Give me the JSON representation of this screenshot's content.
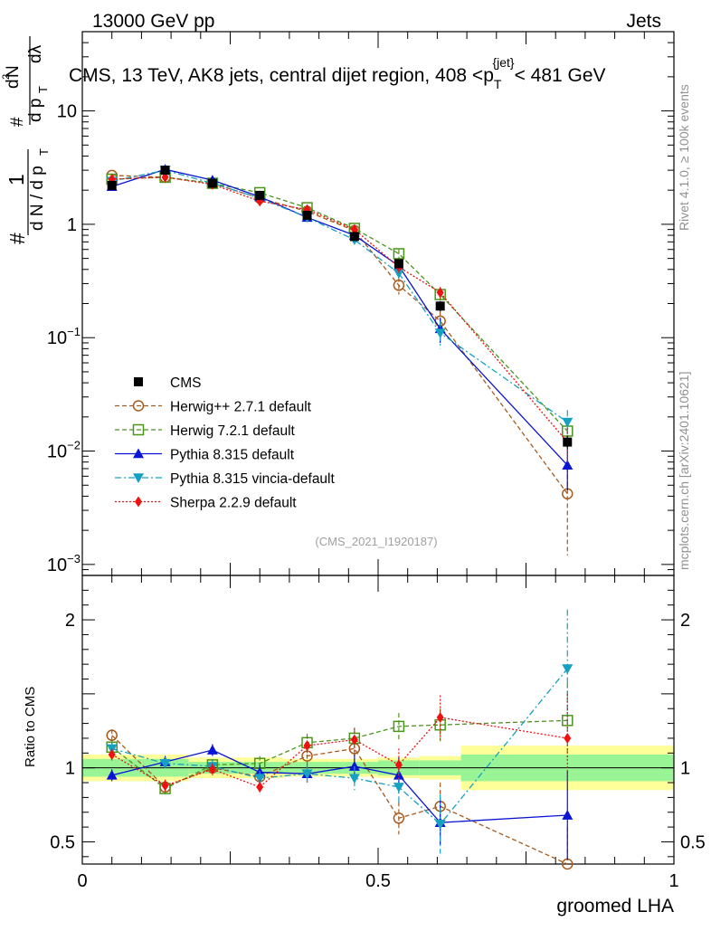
{
  "header": {
    "energy_label": "13000 GeV pp",
    "category_label": "Jets",
    "rivet_label": "Rivet 4.1.0, ≥ 100k events",
    "mcplots_label": "mcplots.cern.ch [arXiv:2401.10621]",
    "analysis_ref": "(CMS_2021_I1920187)"
  },
  "chart_data": {
    "type": "line",
    "title": "CMS, 13 TeV, AK8 jets, central dijet region, 408 < p_T^{jet} < 481 GeV",
    "title_parts": {
      "main": "CMS, 13 TeV, AK8 jets, central dijet region, 408 <p",
      "sub": "T",
      "sup": "{jet}",
      "tail": "< 481 GeV"
    },
    "xlabel": "groomed LHA",
    "ylabel": "1/dN/dp_T  d²N / dp_T dλ",
    "ylabel_ratio": "Ratio to CMS",
    "xlim": [
      0,
      1
    ],
    "ylim_main": [
      0.0008,
      50
    ],
    "ylim_ratio": [
      0.35,
      2.3
    ],
    "yscale_main": "log",
    "main_yticks": [
      {
        "value": 0.001,
        "base": "10",
        "exp": "−3"
      },
      {
        "value": 0.01,
        "base": "10",
        "exp": "−2"
      },
      {
        "value": 0.1,
        "base": "10",
        "exp": "−1"
      },
      {
        "value": 1,
        "base": "1",
        "exp": ""
      },
      {
        "value": 10,
        "base": "10",
        "exp": ""
      }
    ],
    "ratio_yticks": [
      {
        "value": 0.5,
        "label": "0.5"
      },
      {
        "value": 1,
        "label": "1"
      },
      {
        "value": 2,
        "label": "2"
      }
    ],
    "xticks": [
      {
        "value": 0,
        "label": "0"
      },
      {
        "value": 0.5,
        "label": "0.5"
      },
      {
        "value": 1,
        "label": "1"
      }
    ],
    "bin_edges": [
      0,
      0.1,
      0.18,
      0.26,
      0.34,
      0.42,
      0.5,
      0.57,
      0.64,
      1.0
    ],
    "bin_centers": [
      0.05,
      0.14,
      0.22,
      0.3,
      0.38,
      0.46,
      0.535,
      0.605,
      0.82
    ],
    "data": {
      "name": "CMS",
      "values": [
        2.2,
        3.0,
        2.3,
        1.8,
        1.2,
        0.78,
        0.45,
        0.19,
        0.012
      ],
      "errors": [
        0.2,
        0.2,
        0.15,
        0.12,
        0.08,
        0.06,
        0.04,
        0.02,
        0.0015
      ],
      "color": "#000000"
    },
    "ratio_bands": {
      "inner": [
        0.06,
        0.06,
        0.04,
        0.04,
        0.04,
        0.04,
        0.05,
        0.05,
        0.09
      ],
      "outer": [
        0.09,
        0.09,
        0.07,
        0.07,
        0.06,
        0.06,
        0.07,
        0.08,
        0.15
      ],
      "inner_color": "#99f495",
      "outer_color": "#ffff99"
    },
    "series": [
      {
        "name": "Herwig++ 2.7.1 default",
        "color": "#a85a1d",
        "dash": "5,3",
        "marker": "circle-open",
        "values": [
          2.7,
          2.6,
          2.3,
          1.7,
          1.3,
          0.88,
          0.29,
          0.14,
          0.0042
        ],
        "errors": [
          0.1,
          0.1,
          0.1,
          0.08,
          0.08,
          0.06,
          0.05,
          0.03,
          0.003
        ],
        "ratio": [
          1.22,
          0.87,
          1.0,
          0.94,
          1.08,
          1.13,
          0.66,
          0.74,
          0.35
        ],
        "ratio_errors": [
          0.04,
          0.04,
          0.04,
          0.05,
          0.06,
          0.08,
          0.11,
          0.16,
          0.25
        ]
      },
      {
        "name": "Herwig 7.2.1 default",
        "color": "#4a961b",
        "dash": "5,3",
        "marker": "square-open",
        "values": [
          2.5,
          2.6,
          2.3,
          1.9,
          1.4,
          0.92,
          0.55,
          0.24,
          0.015
        ],
        "errors": [
          0.1,
          0.1,
          0.1,
          0.08,
          0.07,
          0.06,
          0.05,
          0.03,
          0.003
        ],
        "ratio": [
          1.14,
          0.86,
          1.02,
          1.03,
          1.17,
          1.2,
          1.28,
          1.29,
          1.32
        ],
        "ratio_errors": [
          0.04,
          0.04,
          0.04,
          0.05,
          0.06,
          0.07,
          0.09,
          0.11,
          0.25
        ]
      },
      {
        "name": "Pythia 8.315 default",
        "color": "#0a14d6",
        "dash": "",
        "marker": "triangle-up",
        "values": [
          2.15,
          3.05,
          2.45,
          1.75,
          1.15,
          0.8,
          0.43,
          0.12,
          0.0075
        ],
        "errors": [
          0.1,
          0.12,
          0.1,
          0.08,
          0.06,
          0.05,
          0.05,
          0.03,
          0.003
        ],
        "ratio": [
          0.95,
          1.04,
          1.12,
          0.97,
          0.96,
          1.01,
          0.95,
          0.63,
          0.68
        ],
        "ratio_errors": [
          0.04,
          0.04,
          0.04,
          0.05,
          0.06,
          0.08,
          0.12,
          0.15,
          0.3
        ]
      },
      {
        "name": "Pythia 8.315 vincia-default",
        "color": "#16a1c1",
        "dash": "7,3,2,3",
        "marker": "triangle-down",
        "values": [
          2.4,
          3.0,
          2.3,
          1.7,
          1.15,
          0.73,
          0.37,
          0.11,
          0.018
        ],
        "errors": [
          0.1,
          0.12,
          0.1,
          0.08,
          0.06,
          0.05,
          0.05,
          0.03,
          0.005
        ],
        "ratio": [
          1.13,
          1.03,
          1.01,
          0.93,
          0.96,
          0.93,
          0.87,
          0.62,
          1.67
        ],
        "ratio_errors": [
          0.04,
          0.04,
          0.04,
          0.05,
          0.06,
          0.08,
          0.12,
          0.2,
          0.4
        ]
      },
      {
        "name": "Sherpa 2.2.9 default",
        "color": "#ee1111",
        "dash": "2,2",
        "marker": "diamond",
        "values": [
          2.5,
          2.6,
          2.25,
          1.6,
          1.35,
          0.9,
          0.42,
          0.25,
          0.012
        ],
        "errors": [
          0.1,
          0.1,
          0.1,
          0.08,
          0.06,
          0.05,
          0.05,
          0.03,
          0.004
        ],
        "ratio": [
          1.09,
          0.88,
          0.99,
          0.87,
          1.15,
          1.19,
          1.02,
          1.34,
          1.2
        ],
        "ratio_errors": [
          0.04,
          0.04,
          0.04,
          0.05,
          0.06,
          0.08,
          0.11,
          0.15,
          0.3
        ]
      }
    ]
  }
}
